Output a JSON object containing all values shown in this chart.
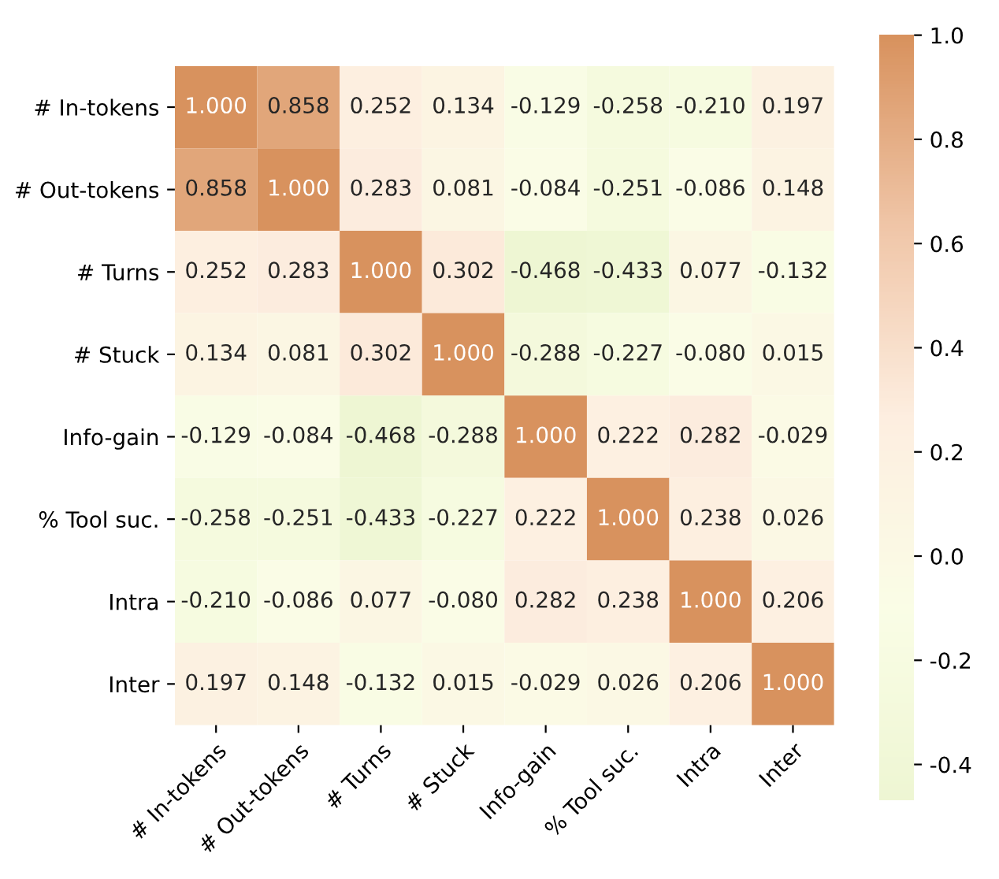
{
  "chart_data": {
    "type": "heatmap",
    "categories": [
      "# In-tokens",
      "# Out-tokens",
      "# Turns",
      "# Stuck",
      "Info-gain",
      "% Tool suc.",
      "Intra",
      "Inter"
    ],
    "y_categories": [
      "# In-tokens",
      "# Out-tokens",
      "# Turns",
      "# Stuck",
      "Info-gain",
      "% Tool suc.",
      "Intra",
      "Inter"
    ],
    "cells": [
      [
        1.0,
        0.858,
        0.252,
        0.134,
        -0.129,
        -0.258,
        -0.21,
        0.197
      ],
      [
        0.858,
        1.0,
        0.283,
        0.081,
        -0.084,
        -0.251,
        -0.086,
        0.148
      ],
      [
        0.252,
        0.283,
        1.0,
        0.302,
        -0.468,
        -0.433,
        0.077,
        -0.132
      ],
      [
        0.134,
        0.081,
        0.302,
        1.0,
        -0.288,
        -0.227,
        -0.08,
        0.015
      ],
      [
        -0.129,
        -0.084,
        -0.468,
        -0.288,
        1.0,
        0.222,
        0.282,
        -0.029
      ],
      [
        -0.258,
        -0.251,
        -0.433,
        -0.227,
        0.222,
        1.0,
        0.238,
        0.026
      ],
      [
        -0.21,
        -0.086,
        0.077,
        -0.08,
        0.282,
        0.238,
        1.0,
        0.206
      ],
      [
        0.197,
        0.148,
        -0.132,
        0.015,
        -0.029,
        0.026,
        0.206,
        1.0
      ]
    ],
    "cell_labels": [
      [
        "1.000",
        "0.858",
        "0.252",
        "0.134",
        "-0.129",
        "-0.258",
        "-0.210",
        "0.197"
      ],
      [
        "0.858",
        "1.000",
        "0.283",
        "0.081",
        "-0.084",
        "-0.251",
        "-0.086",
        "0.148"
      ],
      [
        "0.252",
        "0.283",
        "1.000",
        "0.302",
        "-0.468",
        "-0.433",
        "0.077",
        "-0.132"
      ],
      [
        "0.134",
        "0.081",
        "0.302",
        "1.000",
        "-0.288",
        "-0.227",
        "-0.080",
        "0.015"
      ],
      [
        "-0.129",
        "-0.084",
        "-0.468",
        "-0.288",
        "1.000",
        "0.222",
        "0.282",
        "-0.029"
      ],
      [
        "-0.258",
        "-0.251",
        "-0.433",
        "-0.227",
        "0.222",
        "1.000",
        "0.238",
        "0.026"
      ],
      [
        "-0.210",
        "-0.086",
        "0.077",
        "-0.080",
        "0.282",
        "0.238",
        "1.000",
        "0.206"
      ],
      [
        "0.197",
        "0.148",
        "-0.132",
        "0.015",
        "-0.029",
        "0.026",
        "0.206",
        "1.000"
      ]
    ],
    "colors": [
      "#eef6d3",
      "#fafde6",
      "#fdeee0",
      "#f0c6a8",
      "#d8925e"
    ],
    "clim": [
      -0.468,
      1.0
    ],
    "cticks": [
      -0.4,
      -0.2,
      {
        "value": 0,
        "label": "0.0"
      },
      0.2,
      0.4,
      0.6,
      0.8,
      {
        "value": 1,
        "label": "1.0"
      }
    ]
  }
}
